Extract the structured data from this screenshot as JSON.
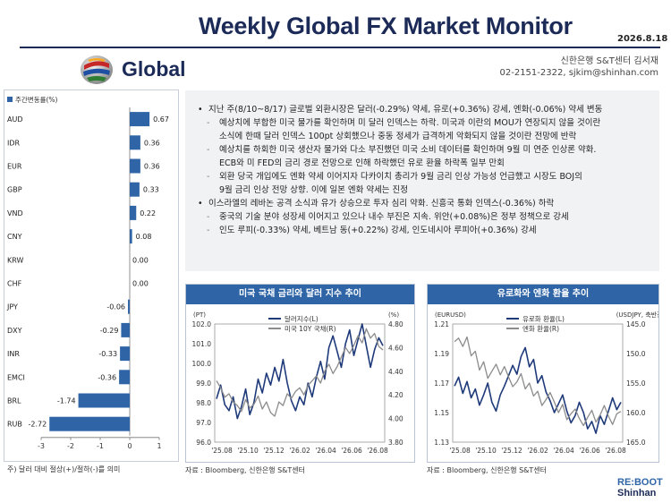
{
  "header": {
    "title": "Weekly Global FX Market Monitor",
    "date": "2026.8.18",
    "section": "Global",
    "author": "신한은행 S&T센터 김서재",
    "contact": "02-2151-2322, sjkim@shinhan.com"
  },
  "bar_chart": {
    "legend": "주간변동률(%)",
    "note": "주) 달러 대비 절상(+)/절하(-)를 의미"
  },
  "summary": {
    "lines": [
      {
        "marker": "•",
        "type": "bullet",
        "text": "지난 주(8/10~8/17) 글로벌 외환시장은 달러(-0.29%) 약세, 유로(+0.36%) 강세, 엔화(-0.06%) 약세 변동"
      },
      {
        "marker": "-",
        "type": "sub",
        "text": "예상치에 부합한 미국 물가를 확인하며 미 달러 인덱스는 하락. 미국과 이란의 MOU가 연장되지 않을 것이란"
      },
      {
        "marker": "",
        "type": "wrap",
        "text": "소식에 한때 달러 인덱스 100pt 상회했으나 중동 정세가 급격하게 악화되지 않을 것이란 전망에 반락"
      },
      {
        "marker": "-",
        "type": "sub",
        "text": "예상치를 하회한 미국 생산자 물가와 다소 부진했던 미국 소비 데이터를 확인하며 9월 미 연준 인상론 약화."
      },
      {
        "marker": "",
        "type": "wrap",
        "text": "ECB와 미 FED의 금리 경로 전망으로 인해 하락했던 유로 환율 하락폭 일부 만회"
      },
      {
        "marker": "-",
        "type": "sub",
        "text": "외환 당국 개입에도 엔화 약세 이어지자 다카이치 총리가 9월 금리 인상 가능성 언급했고 시장도 BOJ의"
      },
      {
        "marker": "",
        "type": "wrap",
        "text": "9월 금리 인상 전망 상향. 이에 일본 엔화 약세는 진정"
      },
      {
        "marker": "•",
        "type": "bullet",
        "text": "이스라엘의 레바논 공격 소식과 유가 상승으로 투자 심리 약화. 신흥국 통화 인덱스(-0.36%) 하락"
      },
      {
        "marker": "-",
        "type": "sub",
        "text": "중국의 기술 분야 성장세 이어지고 있으나 내수 부진은 지속. 위안(+0.08%)은 정부 정책으로 강세"
      },
      {
        "marker": "-",
        "type": "sub",
        "text": "인도 루피(-0.33%) 약세, 베트남 동(+0.22%) 강세, 인도네시아 루피아(+0.36%) 강세"
      }
    ]
  },
  "panels": {
    "left": {
      "title": "미국 국채 금리와 달러 지수 추이",
      "source": "자료 : Bloomberg, 신한은행 S&T센터"
    },
    "right": {
      "title": "유로화와 엔화 환율 추이",
      "source": "자료 : Bloomberg, 신한은행 S&T센터"
    }
  },
  "logo": {
    "line1": "RE:BOOT",
    "line2": "Shinhan"
  },
  "colors": {
    "navy": "#1b2a57",
    "bar": "#2f65a7",
    "line_dark": "#1f3a7a",
    "line_gray": "#8c8c8c"
  },
  "chart_data": [
    {
      "type": "bar",
      "orientation": "horizontal",
      "legend": [
        "주간변동률(%)"
      ],
      "categories": [
        "AUD",
        "IDR",
        "EUR",
        "GBP",
        "VND",
        "CNY",
        "KRW",
        "CHF",
        "JPY",
        "DXY",
        "INR",
        "EMCI",
        "BRL",
        "RUB"
      ],
      "values": [
        0.67,
        0.36,
        0.36,
        0.33,
        0.22,
        0.08,
        0.0,
        0.0,
        -0.06,
        -0.29,
        -0.33,
        -0.36,
        -1.74,
        -2.72
      ],
      "value_labels": [
        "0.67",
        "0.36",
        "0.36",
        "0.33",
        "0.22",
        "0.08",
        "0.00",
        "0.00",
        "-0.06",
        "-0.29",
        "-0.33",
        "-0.36",
        "-1.74",
        "-2.72"
      ],
      "xlim": [
        -3,
        1
      ],
      "xticks": [
        "-3",
        "-2",
        "-1",
        "0",
        "1"
      ]
    },
    {
      "type": "line",
      "title": "미국 국채 금리와 달러 지수 추이",
      "x_ticks": [
        "'25.08",
        "'25.10",
        "'25.12",
        "'26.02",
        "'26.04",
        "'26.06",
        "'26.08"
      ],
      "y_left_unit": "(PT)",
      "y_left_ticks": [
        "102.0",
        "101.0",
        "100.0",
        "99.0",
        "98.0",
        "97.0",
        "96.0"
      ],
      "ylim_left": [
        96,
        102
      ],
      "y_right_unit": "(%)",
      "y_right_ticks": [
        "4.80",
        "4.60",
        "4.40",
        "4.20",
        "4.00",
        "3.80"
      ],
      "ylim_right": [
        3.8,
        4.8
      ],
      "series": [
        {
          "name": "달러지수(L)",
          "axis": "left",
          "values": [
            98.2,
            98.9,
            97.9,
            97.6,
            98.3,
            97.2,
            97.8,
            98.7,
            97.4,
            98.0,
            99.2,
            98.5,
            99.5,
            98.9,
            99.8,
            99.1,
            100.2,
            99.0,
            98.1,
            97.6,
            98.3,
            97.9,
            99.0,
            98.3,
            99.3,
            100.1,
            99.2,
            100.8,
            101.4,
            100.6,
            99.8,
            101.0,
            101.7,
            100.4,
            101.2,
            102.0,
            100.9,
            99.8,
            100.7,
            101.3,
            100.9
          ]
        },
        {
          "name": "미국 10Y 국채(R)",
          "axis": "right",
          "values": [
            4.32,
            4.26,
            4.18,
            4.21,
            4.14,
            4.11,
            4.06,
            4.16,
            4.09,
            4.12,
            4.19,
            4.08,
            4.14,
            4.05,
            4.02,
            4.14,
            4.11,
            4.21,
            4.17,
            4.23,
            4.26,
            4.2,
            4.28,
            4.32,
            4.36,
            4.3,
            4.4,
            4.46,
            4.38,
            4.44,
            4.52,
            4.6,
            4.55,
            4.62,
            4.7,
            4.64,
            4.76,
            4.68,
            4.72,
            4.61,
            4.58
          ]
        }
      ]
    },
    {
      "type": "line",
      "title": "유로화와 엔화 환율 추이",
      "x_ticks": [
        "'25.08",
        "'25.10",
        "'25.12",
        "'26.02",
        "'26.04",
        "'26.06",
        "'26.08"
      ],
      "y_left_unit": "(EURUSD)",
      "y_left_ticks": [
        "1.21",
        "1.19",
        "1.17",
        "1.15",
        "1.13"
      ],
      "ylim_left": [
        1.13,
        1.21
      ],
      "y_right_unit": "(USDJPY, 축반전)",
      "y_right_ticks": [
        "145.0",
        "150.0",
        "155.0",
        "160.0",
        "165.0"
      ],
      "ylim_right_inverted": [
        145,
        165
      ],
      "series": [
        {
          "name": "유로화 환율(L)",
          "axis": "left",
          "values": [
            1.168,
            1.174,
            1.163,
            1.171,
            1.16,
            1.166,
            1.155,
            1.162,
            1.17,
            1.157,
            1.151,
            1.162,
            1.168,
            1.175,
            1.182,
            1.176,
            1.188,
            1.194,
            1.181,
            1.186,
            1.17,
            1.175,
            1.164,
            1.158,
            1.15,
            1.156,
            1.162,
            1.151,
            1.143,
            1.148,
            1.157,
            1.15,
            1.139,
            1.144,
            1.136,
            1.148,
            1.142,
            1.151,
            1.16,
            1.152,
            1.157
          ]
        },
        {
          "name": "엔화 환율(R)",
          "axis": "right",
          "values": [
            148.0,
            147.4,
            148.8,
            147.2,
            150.4,
            149.6,
            152.8,
            151.4,
            154.2,
            153.0,
            151.8,
            153.6,
            152.2,
            154.0,
            155.6,
            154.8,
            153.4,
            156.0,
            155.0,
            157.2,
            156.4,
            158.8,
            157.8,
            156.6,
            158.2,
            160.0,
            158.6,
            161.2,
            160.2,
            159.4,
            161.0,
            162.2,
            160.8,
            159.6,
            161.6,
            160.4,
            158.8,
            160.6,
            162.0,
            160.2,
            159.8
          ]
        }
      ]
    }
  ]
}
